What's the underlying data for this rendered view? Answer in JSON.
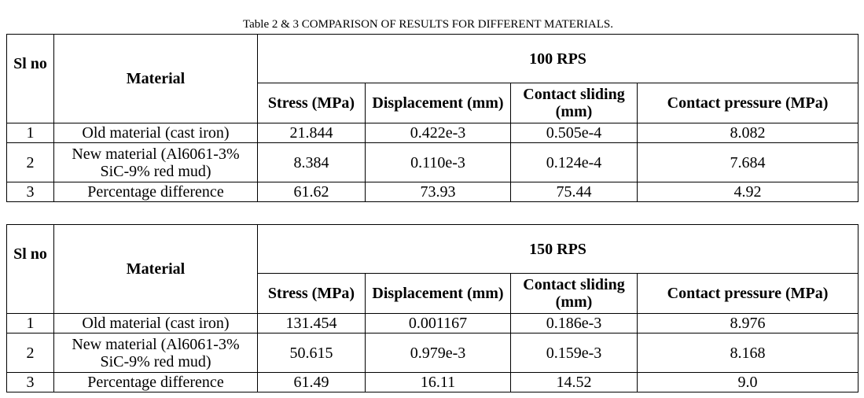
{
  "caption": "Table 2 & 3 COMPARISON OF RESULTS FOR DIFFERENT MATERIALS.",
  "tables": [
    {
      "speed": "100 RPS",
      "headers": {
        "sl_no": "Sl no",
        "material": "Material",
        "stress": "Stress (MPa)",
        "displacement": "Displacement (mm)",
        "contact_sliding": "Contact sliding (mm)",
        "contact_pressure": "Contact pressure (MPa)"
      },
      "rows": [
        {
          "sl": "1",
          "material": "Old material (cast iron)",
          "stress": "21.844",
          "displacement": "0.422e-3",
          "contact_sliding": "0.505e-4",
          "contact_pressure": "8.082"
        },
        {
          "sl": "2",
          "material": "New material (Al6061-3% SiC-9% red mud)",
          "stress": "8.384",
          "displacement": "0.110e-3",
          "contact_sliding": "0.124e-4",
          "contact_pressure": "7.684"
        },
        {
          "sl": "3",
          "material": "Percentage difference",
          "stress": "61.62",
          "displacement": "73.93",
          "contact_sliding": "75.44",
          "contact_pressure": "4.92"
        }
      ]
    },
    {
      "speed": "150 RPS",
      "headers": {
        "sl_no": "Sl no",
        "material": "Material",
        "stress": "Stress (MPa)",
        "displacement": "Displacement (mm)",
        "contact_sliding": "Contact sliding (mm)",
        "contact_pressure": "Contact pressure (MPa)"
      },
      "rows": [
        {
          "sl": "1",
          "material": "Old material (cast iron)",
          "stress": "131.454",
          "displacement": "0.001167",
          "contact_sliding": "0.186e-3",
          "contact_pressure": "8.976"
        },
        {
          "sl": "2",
          "material": "New material (Al6061-3% SiC-9% red mud)",
          "stress": "50.615",
          "displacement": "0.979e-3",
          "contact_sliding": "0.159e-3",
          "contact_pressure": "8.168"
        },
        {
          "sl": "3",
          "material": "Percentage difference",
          "stress": "61.49",
          "displacement": "16.11",
          "contact_sliding": "14.52",
          "contact_pressure": "9.0"
        }
      ]
    }
  ]
}
